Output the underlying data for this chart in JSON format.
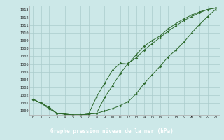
{
  "title": "Graphe pression niveau de la mer (hPa)",
  "x_labels": [
    "0",
    "1",
    "2",
    "3",
    "4",
    "5",
    "6",
    "7",
    "8",
    "9",
    "10",
    "11",
    "12",
    "13",
    "14",
    "15",
    "16",
    "17",
    "18",
    "19",
    "20",
    "21",
    "22",
    "23"
  ],
  "ylim": [
    999.5,
    1013.5
  ],
  "yticks": [
    1000,
    1001,
    1002,
    1003,
    1004,
    1005,
    1006,
    1007,
    1008,
    1009,
    1010,
    1011,
    1012,
    1013
  ],
  "line1_x": [
    0,
    1,
    2,
    3,
    4,
    5,
    6,
    7,
    8,
    9,
    10,
    11,
    12,
    13,
    14,
    15,
    16,
    17,
    18,
    19,
    20,
    21,
    22,
    23
  ],
  "line1_y": [
    1001.5,
    1001.0,
    1000.5,
    999.7,
    999.6,
    999.5,
    999.5,
    999.6,
    999.7,
    1001.7,
    1003.2,
    1004.8,
    1006.1,
    1006.8,
    1007.8,
    1008.6,
    1009.4,
    1010.2,
    1010.9,
    1011.6,
    1012.1,
    1012.6,
    1013.0,
    1013.2
  ],
  "line2_x": [
    0,
    1,
    2,
    3,
    4,
    5,
    6,
    7,
    8,
    9,
    10,
    11,
    12,
    13,
    14,
    15,
    16,
    17,
    18,
    19,
    20,
    21,
    22,
    23
  ],
  "line2_y": [
    1001.5,
    1001.0,
    1000.5,
    999.7,
    999.6,
    999.5,
    999.5,
    999.6,
    1001.8,
    1003.5,
    1005.2,
    1006.1,
    1006.0,
    1007.2,
    1008.3,
    1009.0,
    1009.6,
    1010.5,
    1011.2,
    1011.8,
    1012.3,
    1012.7,
    1013.0,
    1013.2
  ],
  "line3_x": [
    0,
    1,
    2,
    3,
    4,
    5,
    6,
    7,
    8,
    9,
    10,
    11,
    12,
    13,
    14,
    15,
    16,
    17,
    18,
    19,
    20,
    21,
    22,
    23
  ],
  "line3_y": [
    1001.5,
    1001.0,
    1000.3,
    999.7,
    999.6,
    999.5,
    999.5,
    999.6,
    999.7,
    1000.0,
    1000.3,
    1000.7,
    1001.2,
    1002.2,
    1003.5,
    1004.6,
    1005.7,
    1006.9,
    1007.8,
    1008.8,
    1010.0,
    1011.1,
    1012.1,
    1013.0
  ],
  "line_color": "#2d6a2d",
  "bg_color": "#cce8e8",
  "grid_color": "#aacccc",
  "title_bg": "#336633",
  "title_color": "#ffffff",
  "marker": "D",
  "marker_size": 1.8,
  "lw": 0.7
}
